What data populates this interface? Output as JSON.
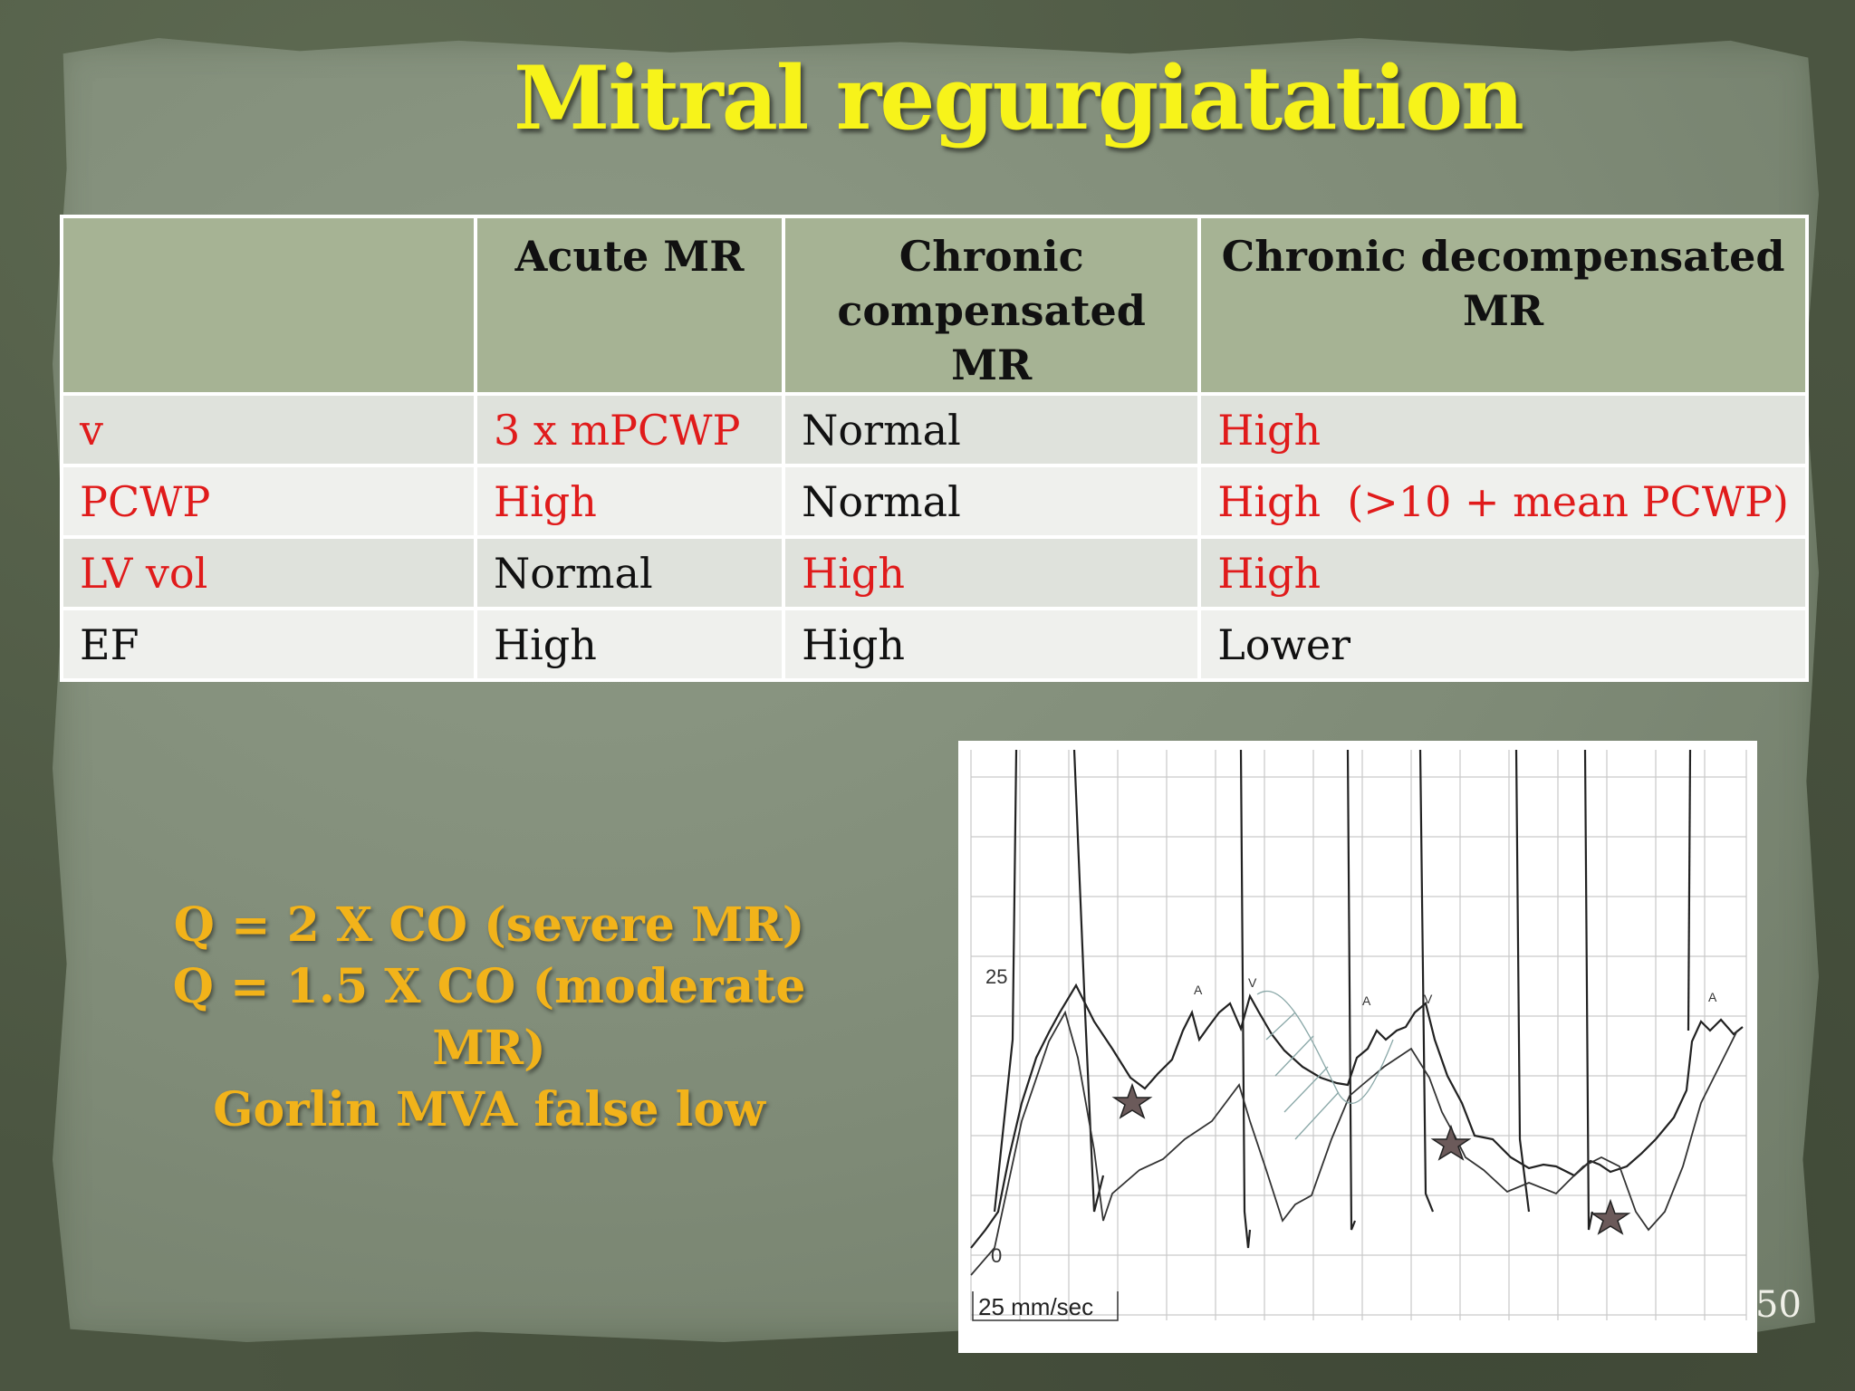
{
  "slide": {
    "title": "Mitral regurgiatation",
    "page_number": "50"
  },
  "table": {
    "headers": [
      "",
      "Acute MR",
      "Chronic compensated MR",
      "Chronic decompensated MR"
    ],
    "rows": [
      {
        "label": "v",
        "acute": "3 x mPCWP",
        "compensated": "Normal",
        "decompensated": "High"
      },
      {
        "label": "PCWP",
        "acute": "High",
        "compensated": "Normal",
        "decompensated": "High  (>10 + mean PCWP)"
      },
      {
        "label": "LV vol",
        "acute": "Normal",
        "compensated": "High",
        "decompensated": "High"
      },
      {
        "label": "EF",
        "acute": "High",
        "compensated": "High",
        "decompensated": "Lower"
      }
    ]
  },
  "notes": {
    "line1": "Q = 2 X CO (severe MR)",
    "line2": "Q = 1.5 X CO (moderate MR)",
    "line3": "Gorlin MVA false low"
  },
  "tracing": {
    "scale_25": "25",
    "scale_0": "0",
    "speed": "25 mm/sec",
    "wave_a": "A",
    "wave_v": "V"
  },
  "colors": {
    "title": "#f7f31a",
    "highlight_red": "#e01b1b",
    "note_gold": "#f2b31a",
    "header_green": "#a6b394"
  }
}
